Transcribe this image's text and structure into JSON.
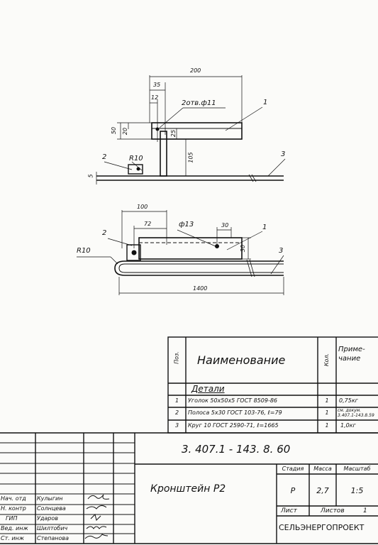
{
  "drawing": {
    "top_view": {
      "dim_200": "200",
      "dim_35": "35",
      "dim_12": "12",
      "dim_50": "50",
      "dim_20": "20",
      "dim_25": "25",
      "dim_105": "105",
      "dim_5": "5",
      "holes_note": "2отв.ф11",
      "r10": "R10",
      "pos1": "1",
      "pos2": "2",
      "pos3": "3"
    },
    "plan_view": {
      "dim_100": "100",
      "dim_72": "72",
      "hole": "ф13",
      "dim_30a": "30",
      "dim_30b": "30",
      "dim_1400": "1400",
      "r10": "R10",
      "pos1": "1",
      "pos2": "2",
      "pos3": "3"
    }
  },
  "spec_table": {
    "headers": {
      "pos": "Поз.",
      "name": "Наименование",
      "qty": "Кол.",
      "note": "Приме- чание"
    },
    "section": "Детали",
    "rows": [
      {
        "pos": "1",
        "name": "Уголок 50х50х5 ГОСТ 8509-86",
        "qty": "1",
        "note": "0,75кг"
      },
      {
        "pos": "2",
        "name": "Полоса 5х30 ГОСТ 103-76, ℓ=79",
        "qty": "1",
        "note": "см. докум. 3.407.1-143.8.59"
      },
      {
        "pos": "3",
        "name": "Круг 10 ГОСТ 2590-71, ℓ=1665",
        "qty": "1",
        "note": "1,0кг"
      }
    ]
  },
  "title_block": {
    "doc_code": "3. 407.1 - 143. 8. 60",
    "title": "Кронштейн Р2",
    "stage_label": "Стадия",
    "mass_label": "Масса",
    "scale_label": "Масштаб",
    "stage": "Р",
    "mass": "2,7",
    "scale": "1:5",
    "sheet_label": "Лист",
    "sheets_label": "Листов",
    "sheets": "1",
    "org": "СЕЛЬЭНЕРГОПРОЕКТ",
    "signers": [
      {
        "role": "Нач. отд",
        "name": "Кулыгин"
      },
      {
        "role": "Н. контр",
        "name": "Солнцева"
      },
      {
        "role": "ГИП",
        "name": "Ударов"
      },
      {
        "role": "Вед. инж",
        "name": "Шилтобич"
      },
      {
        "role": "Ст. инж",
        "name": "Степанова"
      }
    ]
  }
}
